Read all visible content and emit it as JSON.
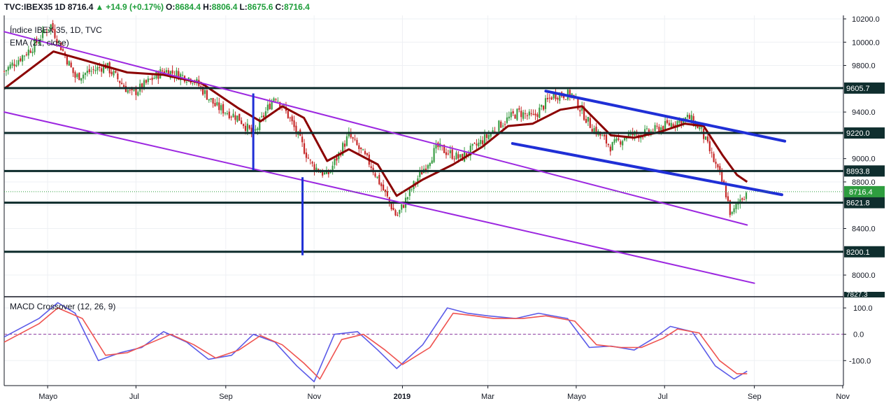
{
  "header": {
    "symbol": "TVC:IBEX35",
    "interval": "1D",
    "last": "8716.4",
    "change": "+14.9 (+0.17%)",
    "open_label": "O:",
    "open": "8684.4",
    "high_label": "H:",
    "high": "8806.4",
    "low_label": "L:",
    "low": "8675.6",
    "close_label": "C:",
    "close": "8716.4"
  },
  "main_pane": {
    "title": "Índice IBEX 35, 1D, TVC",
    "indicator": "EMA (21, close)"
  },
  "macd_pane": {
    "title": "MACD Crossover (12, 26, 9)"
  },
  "colors": {
    "up": "#26a69a",
    "candle_up": "#3a9d45",
    "candle_down": "#c62828",
    "ema": "#8b0000",
    "trend_channel": "#9c27e0",
    "trend_blue": "#1f2fd6",
    "hline": "#0d2b2b",
    "macd": "#5b5be8",
    "signal": "#ef5350",
    "last_price_tag": "#2e9d3f"
  },
  "chart_data": [
    {
      "type": "candlestick",
      "title": "Índice IBEX 35, 1D, TVC",
      "x_ticks": [
        "Mayo",
        "Jul",
        "Sep",
        "Nov",
        "2019",
        "Mar",
        "Mayo",
        "Jul",
        "Sep",
        "Nov"
      ],
      "y_ticks": [
        10200,
        10000,
        9800,
        9600,
        9400,
        9200,
        9000,
        8800,
        8600,
        8400,
        8200,
        8000
      ],
      "y_tick_labels": [
        "10200.0",
        "10000.0",
        "9800.0",
        "9400.0",
        "9000.0",
        "8800.0",
        "8400.0",
        "8000.0"
      ],
      "ylim": [
        7820,
        10230
      ],
      "price_path": [
        [
          "2018-04-01",
          9750
        ],
        [
          "2018-04-20",
          9950
        ],
        [
          "2018-05-03",
          10150
        ],
        [
          "2018-05-20",
          9700
        ],
        [
          "2018-06-10",
          9800
        ],
        [
          "2018-06-28",
          9550
        ],
        [
          "2018-07-20",
          9760
        ],
        [
          "2018-08-10",
          9680
        ],
        [
          "2018-08-25",
          9450
        ],
        [
          "2018-09-10",
          9350
        ],
        [
          "2018-09-20",
          9200
        ],
        [
          "2018-10-05",
          9550
        ],
        [
          "2018-10-15",
          9350
        ],
        [
          "2018-10-30",
          8950
        ],
        [
          "2018-11-10",
          8850
        ],
        [
          "2018-11-25",
          9200
        ],
        [
          "2018-12-10",
          8950
        ],
        [
          "2018-12-28",
          8500
        ],
        [
          "2019-01-10",
          8800
        ],
        [
          "2019-01-25",
          9100
        ],
        [
          "2019-02-10",
          9000
        ],
        [
          "2019-02-25",
          9150
        ],
        [
          "2019-03-10",
          9300
        ],
        [
          "2019-03-22",
          9400
        ],
        [
          "2019-04-01",
          9350
        ],
        [
          "2019-04-15",
          9550
        ],
        [
          "2019-04-28",
          9550
        ],
        [
          "2019-05-10",
          9300
        ],
        [
          "2019-05-25",
          9100
        ],
        [
          "2019-06-05",
          9200
        ],
        [
          "2019-06-20",
          9220
        ],
        [
          "2019-07-05",
          9300
        ],
        [
          "2019-07-18",
          9350
        ],
        [
          "2019-07-26",
          9250
        ],
        [
          "2019-08-05",
          8950
        ],
        [
          "2019-08-12",
          8720
        ],
        [
          "2019-08-16",
          8500
        ],
        [
          "2019-08-22",
          8650
        ],
        [
          "2019-08-27",
          8716.4
        ]
      ],
      "ema_path": [
        [
          "2018-04-01",
          9600
        ],
        [
          "2018-05-05",
          9920
        ],
        [
          "2018-05-25",
          9850
        ],
        [
          "2018-06-25",
          9740
        ],
        [
          "2018-07-20",
          9720
        ],
        [
          "2018-08-15",
          9650
        ],
        [
          "2018-09-10",
          9430
        ],
        [
          "2018-09-25",
          9320
        ],
        [
          "2018-10-10",
          9450
        ],
        [
          "2018-10-25",
          9350
        ],
        [
          "2018-11-10",
          8980
        ],
        [
          "2018-11-25",
          9080
        ],
        [
          "2018-12-15",
          8950
        ],
        [
          "2018-12-28",
          8680
        ],
        [
          "2019-01-15",
          8820
        ],
        [
          "2019-02-05",
          8950
        ],
        [
          "2019-02-25",
          9100
        ],
        [
          "2019-03-15",
          9280
        ],
        [
          "2019-04-01",
          9300
        ],
        [
          "2019-04-20",
          9420
        ],
        [
          "2019-05-05",
          9450
        ],
        [
          "2019-05-25",
          9200
        ],
        [
          "2019-06-10",
          9180
        ],
        [
          "2019-06-28",
          9230
        ],
        [
          "2019-07-15",
          9300
        ],
        [
          "2019-07-28",
          9280
        ],
        [
          "2019-08-10",
          9030
        ],
        [
          "2019-08-20",
          8860
        ],
        [
          "2019-08-27",
          8800
        ]
      ],
      "horizontal_levels": [
        9605.7,
        9220.0,
        8893.8,
        8621.8,
        8200.1
      ],
      "horizontal_level_labels": [
        "9605.7",
        "9220.0",
        "8893.8",
        "8621.8",
        "8200.1"
      ],
      "last_price": 8716.4,
      "last_price_label": "8716.4",
      "clipped_bottom_label": "7827.3",
      "drawings": [
        {
          "kind": "trendline",
          "color": "purple",
          "from": [
            "2018-04-01",
            10090
          ],
          "to": [
            "2019-08-27",
            8430
          ]
        },
        {
          "kind": "trendline",
          "color": "purple",
          "from": [
            "2018-04-01",
            9400
          ],
          "to": [
            "2019-09-01",
            7930
          ]
        },
        {
          "kind": "trendline",
          "color": "blue",
          "from": [
            "2019-04-10",
            9580
          ],
          "to": [
            "2019-09-22",
            9150
          ]
        },
        {
          "kind": "trendline",
          "color": "blue",
          "from": [
            "2019-03-18",
            9130
          ],
          "to": [
            "2019-09-20",
            8690
          ]
        },
        {
          "kind": "vertical",
          "color": "blue",
          "at": "2018-09-20",
          "from": 9560,
          "to": 8900
        },
        {
          "kind": "vertical",
          "color": "blue",
          "at": "2018-10-24",
          "from": 8840,
          "to": 8170
        }
      ]
    },
    {
      "type": "line",
      "title": "MACD Crossover (12, 26, 9)",
      "y_ticks": [
        100,
        0,
        -100
      ],
      "y_tick_labels": [
        "100.0",
        "0.0",
        "-100.0"
      ],
      "ylim": [
        -195,
        140
      ],
      "zero_line": 0,
      "series": [
        {
          "role": "macd",
          "values": [
            [
              "2018-04-01",
              -10
            ],
            [
              "2018-04-25",
              60
            ],
            [
              "2018-05-08",
              120
            ],
            [
              "2018-05-20",
              80
            ],
            [
              "2018-06-05",
              -100
            ],
            [
              "2018-06-20",
              -70
            ],
            [
              "2018-07-05",
              -50
            ],
            [
              "2018-07-20",
              10
            ],
            [
              "2018-08-05",
              -30
            ],
            [
              "2018-08-20",
              -95
            ],
            [
              "2018-09-05",
              -80
            ],
            [
              "2018-09-20",
              0
            ],
            [
              "2018-10-05",
              -30
            ],
            [
              "2018-10-20",
              -120
            ],
            [
              "2018-11-01",
              -180
            ],
            [
              "2018-11-15",
              0
            ],
            [
              "2018-12-01",
              10
            ],
            [
              "2018-12-15",
              -60
            ],
            [
              "2018-12-28",
              -130
            ],
            [
              "2019-01-15",
              -40
            ],
            [
              "2019-02-01",
              100
            ],
            [
              "2019-02-15",
              80
            ],
            [
              "2019-03-01",
              70
            ],
            [
              "2019-03-20",
              60
            ],
            [
              "2019-04-05",
              80
            ],
            [
              "2019-04-25",
              60
            ],
            [
              "2019-05-10",
              -50
            ],
            [
              "2019-05-25",
              -45
            ],
            [
              "2019-06-10",
              -60
            ],
            [
              "2019-06-25",
              -10
            ],
            [
              "2019-07-05",
              30
            ],
            [
              "2019-07-20",
              10
            ],
            [
              "2019-08-05",
              -120
            ],
            [
              "2019-08-18",
              -170
            ],
            [
              "2019-08-27",
              -140
            ]
          ]
        },
        {
          "role": "signal",
          "values": [
            [
              "2018-04-01",
              -30
            ],
            [
              "2018-04-25",
              40
            ],
            [
              "2018-05-08",
              100
            ],
            [
              "2018-05-25",
              60
            ],
            [
              "2018-06-10",
              -80
            ],
            [
              "2018-06-25",
              -70
            ],
            [
              "2018-07-10",
              -35
            ],
            [
              "2018-07-25",
              0
            ],
            [
              "2018-08-10",
              -40
            ],
            [
              "2018-08-25",
              -90
            ],
            [
              "2018-09-10",
              -60
            ],
            [
              "2018-09-25",
              -5
            ],
            [
              "2018-10-10",
              -40
            ],
            [
              "2018-10-25",
              -110
            ],
            [
              "2018-11-05",
              -170
            ],
            [
              "2018-11-20",
              -20
            ],
            [
              "2018-12-05",
              0
            ],
            [
              "2018-12-20",
              -60
            ],
            [
              "2019-01-01",
              -115
            ],
            [
              "2019-01-20",
              -50
            ],
            [
              "2019-02-05",
              80
            ],
            [
              "2019-02-20",
              70
            ],
            [
              "2019-03-05",
              60
            ],
            [
              "2019-03-25",
              60
            ],
            [
              "2019-04-10",
              70
            ],
            [
              "2019-04-30",
              50
            ],
            [
              "2019-05-15",
              -40
            ],
            [
              "2019-06-01",
              -50
            ],
            [
              "2019-06-15",
              -50
            ],
            [
              "2019-06-30",
              -15
            ],
            [
              "2019-07-10",
              20
            ],
            [
              "2019-07-25",
              5
            ],
            [
              "2019-08-08",
              -100
            ],
            [
              "2019-08-20",
              -150
            ],
            [
              "2019-08-27",
              -150
            ]
          ]
        }
      ]
    }
  ]
}
